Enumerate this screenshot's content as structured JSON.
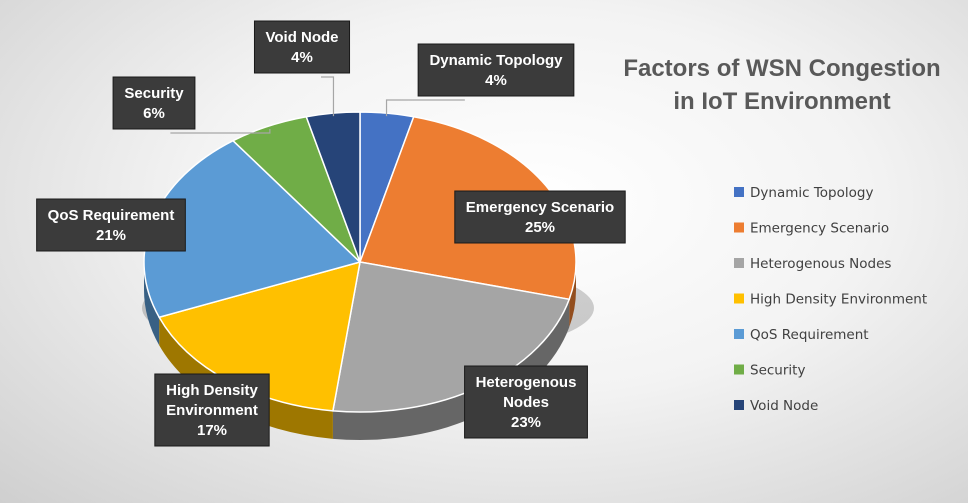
{
  "chart_data": {
    "type": "pie",
    "title_lines": [
      "Factors of WSN Congestion",
      "in IoT Environment"
    ],
    "categories": [
      "Dynamic Topology",
      "Emergency Scenario",
      "Heterogenous Nodes",
      "High Density Environment",
      "QoS Requirement",
      "Security",
      "Void Node"
    ],
    "values": [
      4,
      25,
      23,
      17,
      21,
      6,
      4
    ],
    "unit": "%",
    "colors": [
      "#4472C4",
      "#ED7D31",
      "#A5A5A5",
      "#FFC000",
      "#5B9BD5",
      "#70AD47",
      "#264478"
    ],
    "data_labels": [
      {
        "lines": [
          "Dynamic Topology",
          "4%"
        ]
      },
      {
        "lines": [
          "Emergency Scenario",
          "25%"
        ]
      },
      {
        "lines": [
          "Heterogenous",
          "Nodes",
          "23%"
        ]
      },
      {
        "lines": [
          "High Density",
          "Environment",
          "17%"
        ]
      },
      {
        "lines": [
          "QoS Requirement",
          "21%"
        ]
      },
      {
        "lines": [
          "Security",
          "6%"
        ]
      },
      {
        "lines": [
          "Void Node",
          "4%"
        ]
      }
    ],
    "legend_placement": "right",
    "style": "3d-pie"
  }
}
